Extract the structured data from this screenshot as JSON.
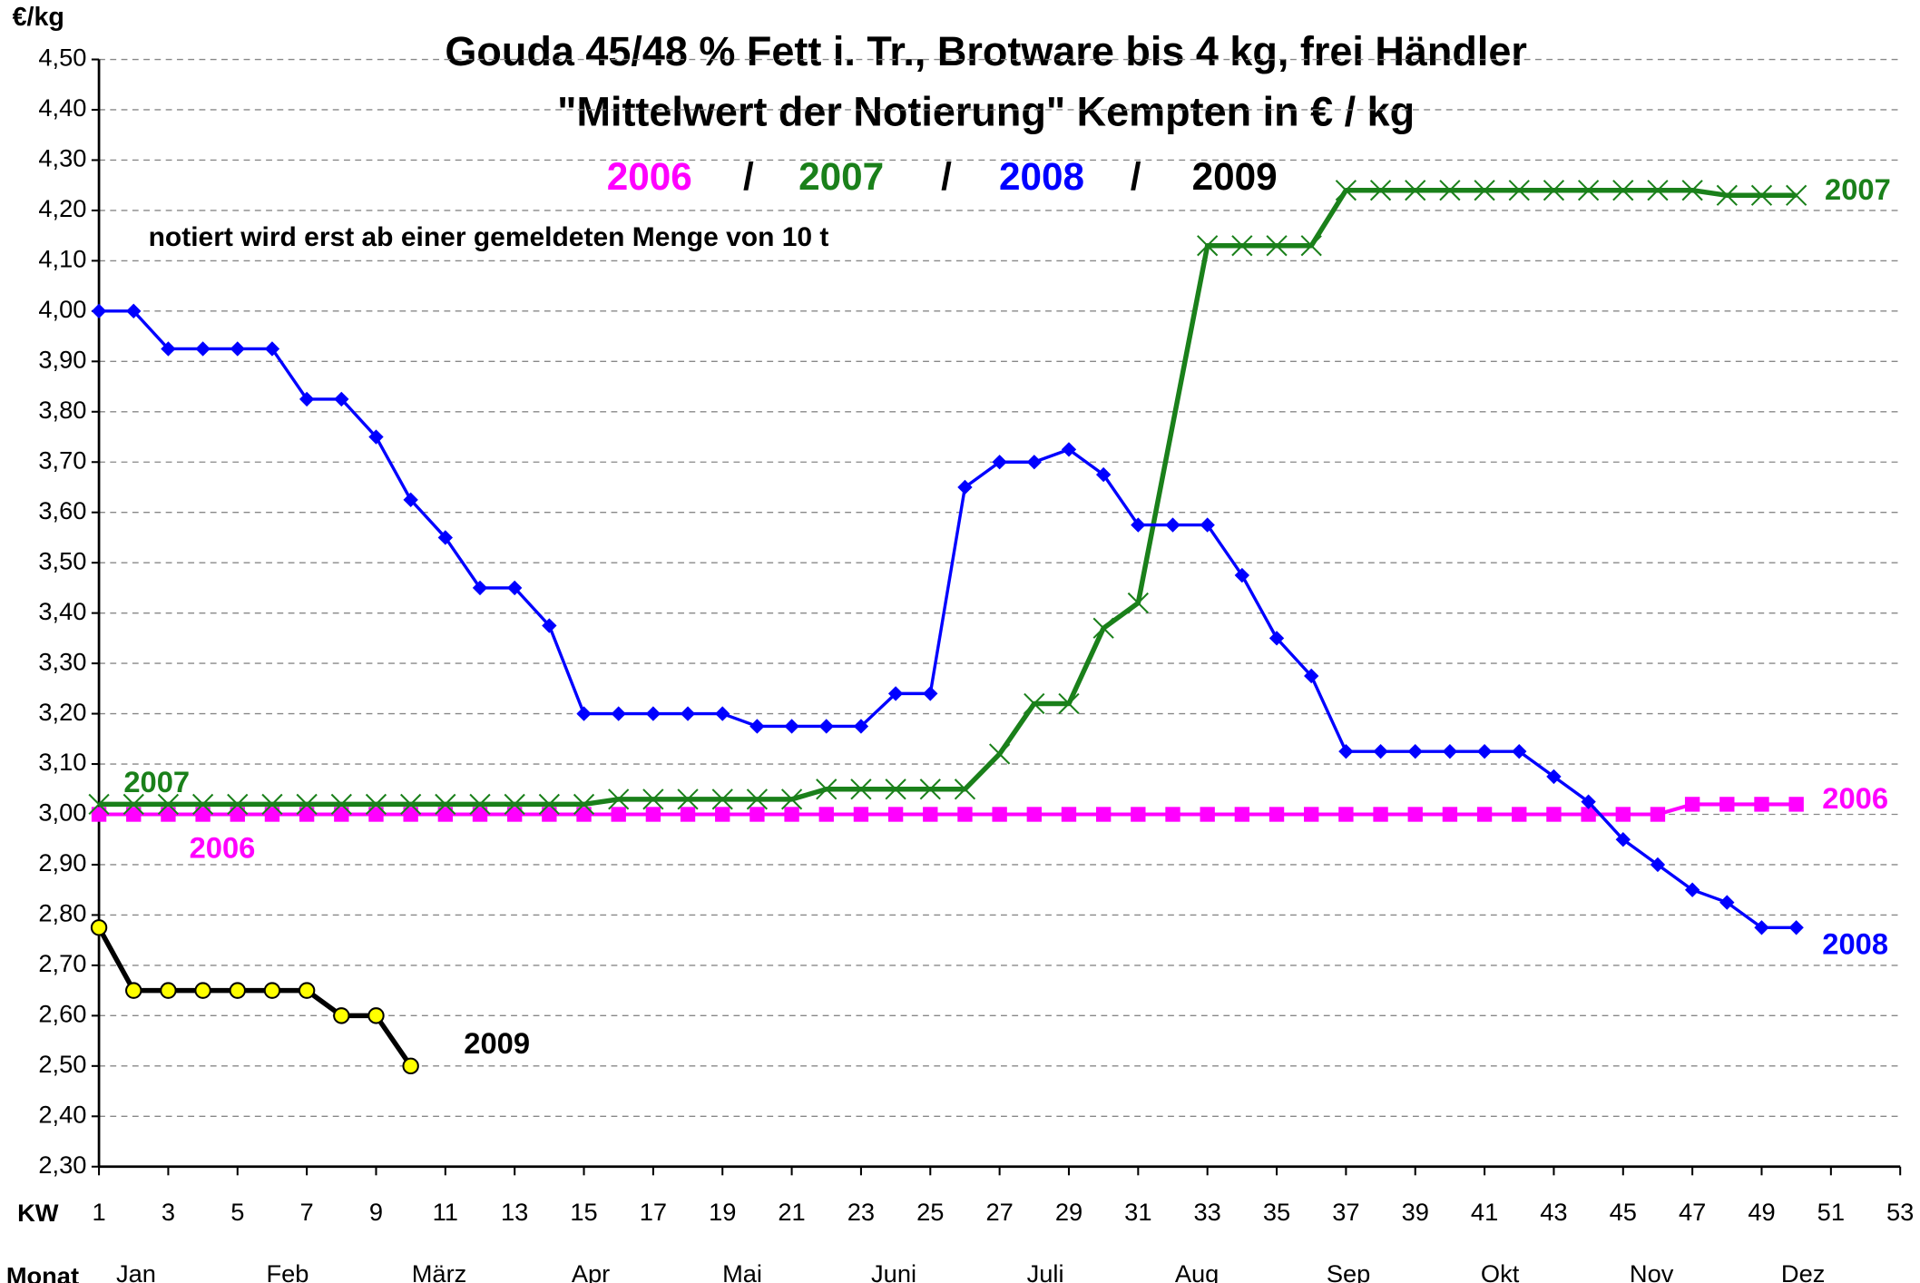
{
  "chart_data": {
    "type": "line",
    "title": "Gouda 45/48 % Fett i. Tr., Brotware bis 4 kg, frei Händler",
    "subtitle": "\"Mittelwert der Notierung\" Kempten in € / kg",
    "note": "notiert wird erst ab einer gemeldeten Menge von 10 t",
    "legend_separator": "/",
    "y_label": "€/kg",
    "x_label": "KW",
    "month_label": "Monat",
    "months": [
      "Jan",
      "Feb",
      "März",
      "Apr",
      "Mai",
      "Juni",
      "Juli",
      "Aug",
      "Sep",
      "Okt",
      "Nov",
      "Dez"
    ],
    "xlim": [
      1,
      53
    ],
    "xticks": [
      1,
      3,
      5,
      7,
      9,
      11,
      13,
      15,
      17,
      19,
      21,
      23,
      25,
      27,
      29,
      31,
      33,
      35,
      37,
      39,
      41,
      43,
      45,
      47,
      49,
      51,
      53
    ],
    "ylim": [
      2.3,
      4.5
    ],
    "yticks": [
      {
        "value": 2.3,
        "label": "2,30"
      },
      {
        "value": 2.4,
        "label": "2,40"
      },
      {
        "value": 2.5,
        "label": "2,50"
      },
      {
        "value": 2.6,
        "label": "2,60"
      },
      {
        "value": 2.7,
        "label": "2,70"
      },
      {
        "value": 2.8,
        "label": "2,80"
      },
      {
        "value": 2.9,
        "label": "2,90"
      },
      {
        "value": 3.0,
        "label": "3,00"
      },
      {
        "value": 3.1,
        "label": "3,10"
      },
      {
        "value": 3.2,
        "label": "3,20"
      },
      {
        "value": 3.3,
        "label": "3,30"
      },
      {
        "value": 3.4,
        "label": "3,40"
      },
      {
        "value": 3.5,
        "label": "3,50"
      },
      {
        "value": 3.6,
        "label": "3,60"
      },
      {
        "value": 3.7,
        "label": "3,70"
      },
      {
        "value": 3.8,
        "label": "3,80"
      },
      {
        "value": 3.9,
        "label": "3,90"
      },
      {
        "value": 4.0,
        "label": "4,00"
      },
      {
        "value": 4.1,
        "label": "4,10"
      },
      {
        "value": 4.2,
        "label": "4,20"
      },
      {
        "value": 4.3,
        "label": "4,30"
      },
      {
        "value": 4.4,
        "label": "4,40"
      },
      {
        "value": 4.5,
        "label": "4,50"
      }
    ],
    "grid": true,
    "series": [
      {
        "name": "2006",
        "color": "#ff00ff",
        "marker": "square",
        "x": [
          1,
          2,
          3,
          4,
          5,
          6,
          7,
          8,
          9,
          10,
          11,
          12,
          13,
          14,
          15,
          16,
          17,
          18,
          19,
          20,
          21,
          22,
          23,
          24,
          25,
          26,
          27,
          28,
          29,
          30,
          31,
          32,
          33,
          34,
          35,
          36,
          37,
          38,
          39,
          40,
          41,
          42,
          43,
          44,
          45,
          46,
          47,
          48,
          49,
          50
        ],
        "values": [
          3.0,
          3.0,
          3.0,
          3.0,
          3.0,
          3.0,
          3.0,
          3.0,
          3.0,
          3.0,
          3.0,
          3.0,
          3.0,
          3.0,
          3.0,
          3.0,
          3.0,
          3.0,
          3.0,
          3.0,
          3.0,
          3.0,
          3.0,
          3.0,
          3.0,
          3.0,
          3.0,
          3.0,
          3.0,
          3.0,
          3.0,
          3.0,
          3.0,
          3.0,
          3.0,
          3.0,
          3.0,
          3.0,
          3.0,
          3.0,
          3.0,
          3.0,
          3.0,
          3.0,
          3.0,
          3.0,
          3.02,
          3.02,
          3.02,
          3.02
        ]
      },
      {
        "name": "2007",
        "color": "#1a801a",
        "marker": "x",
        "x": [
          1,
          2,
          3,
          4,
          5,
          6,
          7,
          8,
          9,
          10,
          11,
          12,
          13,
          14,
          15,
          16,
          17,
          18,
          19,
          20,
          21,
          22,
          23,
          24,
          25,
          26,
          27,
          28,
          29,
          30,
          31,
          33,
          34,
          35,
          36,
          37,
          38,
          39,
          40,
          41,
          42,
          43,
          44,
          45,
          46,
          47,
          48,
          49,
          50
        ],
        "values": [
          3.02,
          3.02,
          3.02,
          3.02,
          3.02,
          3.02,
          3.02,
          3.02,
          3.02,
          3.02,
          3.02,
          3.02,
          3.02,
          3.02,
          3.02,
          3.03,
          3.03,
          3.03,
          3.03,
          3.03,
          3.03,
          3.05,
          3.05,
          3.05,
          3.05,
          3.05,
          3.12,
          3.22,
          3.22,
          3.37,
          3.42,
          4.13,
          4.13,
          4.13,
          4.13,
          4.24,
          4.24,
          4.24,
          4.24,
          4.24,
          4.24,
          4.24,
          4.24,
          4.24,
          4.24,
          4.24,
          4.23,
          4.23,
          4.23
        ]
      },
      {
        "name": "2008",
        "color": "#0000ff",
        "marker": "diamond",
        "x": [
          1,
          2,
          3,
          4,
          5,
          6,
          7,
          8,
          9,
          10,
          11,
          12,
          13,
          14,
          15,
          16,
          17,
          18,
          19,
          20,
          21,
          22,
          23,
          24,
          25,
          26,
          27,
          28,
          29,
          30,
          31,
          32,
          33,
          34,
          35,
          36,
          37,
          38,
          39,
          40,
          41,
          42,
          43,
          44,
          45,
          46,
          47,
          48,
          49,
          50
        ],
        "values": [
          4.0,
          4.0,
          3.925,
          3.925,
          3.925,
          3.925,
          3.825,
          3.825,
          3.75,
          3.625,
          3.55,
          3.45,
          3.45,
          3.375,
          3.2,
          3.2,
          3.2,
          3.2,
          3.2,
          3.175,
          3.175,
          3.175,
          3.175,
          3.24,
          3.24,
          3.65,
          3.7,
          3.7,
          3.725,
          3.675,
          3.575,
          3.575,
          3.575,
          3.475,
          3.35,
          3.275,
          3.125,
          3.125,
          3.125,
          3.125,
          3.125,
          3.125,
          3.075,
          3.025,
          2.95,
          2.9,
          2.85,
          2.825,
          2.775,
          2.775
        ]
      },
      {
        "name": "2009",
        "color": "#000000",
        "marker": "circle",
        "x": [
          1,
          2,
          3,
          4,
          5,
          6,
          7,
          8,
          9,
          10
        ],
        "values": [
          2.775,
          2.65,
          2.65,
          2.65,
          2.65,
          2.65,
          2.65,
          2.6,
          2.6,
          2.5
        ]
      }
    ]
  }
}
